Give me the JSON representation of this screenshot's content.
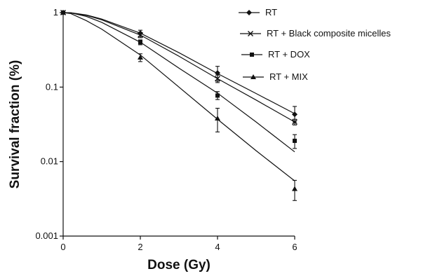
{
  "chart_data": {
    "type": "line",
    "title": "",
    "xlabel": "Dose (Gy)",
    "ylabel": "Survival fraction (%)",
    "x_scale": "linear",
    "y_scale": "log",
    "xlim": [
      0,
      6
    ],
    "ylim": [
      0.001,
      1
    ],
    "x_ticks": [
      0,
      2,
      4,
      6
    ],
    "x_tick_labels": [
      "0",
      "2",
      "4",
      "6"
    ],
    "y_ticks": [
      0.001,
      0.01,
      0.1,
      1
    ],
    "y_tick_labels": [
      "0.001",
      "0.01",
      "0.1",
      "1"
    ],
    "grid": false,
    "legend_position": "top-right",
    "series": [
      {
        "name": "RT",
        "marker": "diamond",
        "x": [
          0,
          2,
          4,
          6
        ],
        "y": [
          1.0,
          0.53,
          0.155,
          0.043
        ],
        "err_low": [
          0,
          0.48,
          0.12,
          0.034
        ],
        "err_high": [
          0,
          0.58,
          0.19,
          0.055
        ],
        "fit_x": [
          0,
          0.2,
          0.6,
          1,
          2,
          3,
          4,
          5,
          6
        ],
        "fit_y": [
          1.0,
          0.995,
          0.93,
          0.82,
          0.53,
          0.29,
          0.152,
          0.082,
          0.044
        ]
      },
      {
        "name": "RT + Black composite micelles",
        "marker": "x",
        "x": [
          0,
          2,
          4,
          6
        ],
        "y": [
          1.0,
          0.5,
          0.13,
          0.034
        ],
        "err_low": [
          0,
          0.46,
          0.115,
          0.031
        ],
        "err_high": [
          0,
          0.54,
          0.145,
          0.037
        ],
        "fit_x": [
          0,
          0.2,
          0.6,
          1,
          2,
          3,
          4,
          5,
          6
        ],
        "fit_y": [
          1.0,
          0.995,
          0.92,
          0.8,
          0.5,
          0.26,
          0.13,
          0.067,
          0.034
        ]
      },
      {
        "name": "RT + DOX",
        "marker": "square",
        "x": [
          0,
          2,
          4,
          6
        ],
        "y": [
          1.0,
          0.4,
          0.077,
          0.019
        ],
        "err_low": [
          0,
          0.37,
          0.068,
          0.015
        ],
        "err_high": [
          0,
          0.43,
          0.087,
          0.023
        ],
        "fit_x": [
          0,
          0.2,
          0.6,
          1,
          2,
          3,
          4,
          5,
          6
        ],
        "fit_y": [
          1.0,
          0.99,
          0.89,
          0.74,
          0.4,
          0.18,
          0.083,
          0.034,
          0.0135
        ]
      },
      {
        "name": "RT + MIX",
        "marker": "triangle",
        "x": [
          0,
          2,
          4,
          6
        ],
        "y": [
          1.0,
          0.25,
          0.038,
          0.0043
        ],
        "err_low": [
          0,
          0.22,
          0.025,
          0.003
        ],
        "err_high": [
          0,
          0.28,
          0.052,
          0.0056
        ],
        "fit_x": [
          0,
          0.2,
          0.6,
          1,
          2,
          3,
          4,
          5,
          6
        ],
        "fit_y": [
          1.0,
          0.97,
          0.78,
          0.6,
          0.27,
          0.1,
          0.037,
          0.014,
          0.0055
        ]
      }
    ]
  }
}
